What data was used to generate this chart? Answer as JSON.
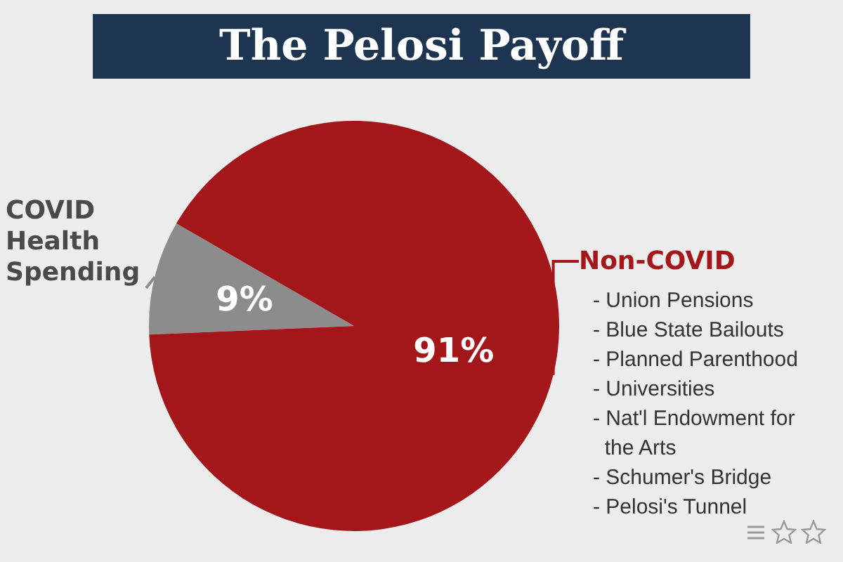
{
  "chart_data": {
    "type": "pie",
    "title": "The Pelosi Payoff",
    "categories": [
      "COVID Health Spending",
      "Non-COVID"
    ],
    "values": [
      9,
      91
    ],
    "colors": [
      "#8c8c8c",
      "#a3161a"
    ],
    "value_labels": [
      "9%",
      "91%"
    ],
    "annotations": [
      "- Union Pensions",
      "- Blue State Bailouts",
      "- Planned Parenthood",
      "- Universities",
      "- Nat'l Endowment for the Arts",
      "- Schumer's Bridge",
      "- Pelosi's Tunnel"
    ],
    "legend": false
  }
}
